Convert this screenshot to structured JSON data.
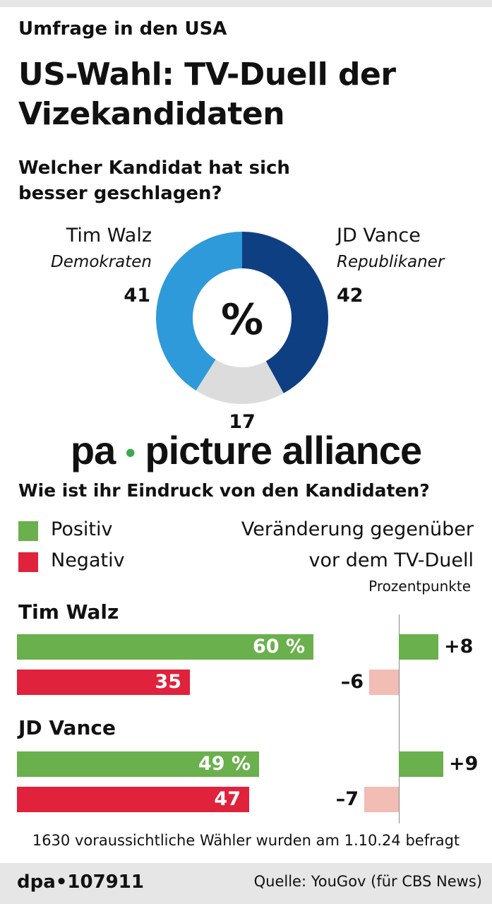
{
  "header": {
    "kicker": "Umfrage in den USA",
    "title_line1": "US-Wahl: TV-Duell der",
    "title_line2": "Vizekandidaten"
  },
  "question1": {
    "line1": "Welcher Kandidat hat sich",
    "line2": "besser geschlagen?"
  },
  "donut": {
    "center_label": "%",
    "walz": {
      "name": "Tim Walz",
      "party": "Demokraten",
      "value": "41"
    },
    "vance": {
      "name": "JD Vance",
      "party": "Republikaner",
      "value": "42"
    },
    "other": {
      "value": "17"
    }
  },
  "watermark": {
    "left": "pa",
    "dot": "•",
    "right": "picture alliance"
  },
  "question2": "Wie ist ihr Eindruck von den Kandidaten?",
  "legend": {
    "positive": "Positiv",
    "negative": "Negativ"
  },
  "change_title": {
    "line1": "Veränderung gegenüber",
    "line2": "vor dem TV-Duell",
    "unit": "Prozentpunkte"
  },
  "candidates": [
    {
      "name": "Tim Walz",
      "positive_label": "60 %",
      "negative_label": "35",
      "positive_change": "+8",
      "negative_change": "–6"
    },
    {
      "name": "JD Vance",
      "positive_label": "49 %",
      "negative_label": "47",
      "positive_change": "+9",
      "negative_change": "–7"
    }
  ],
  "note": "1630 voraussichtliche Wähler wurden am 1.10.24 befragt",
  "footer": {
    "id": "dpa•107911",
    "source": "Quelle: YouGov (für CBS News)"
  },
  "colors": {
    "democrat": "#2e9ad9",
    "republican": "#0f3f83",
    "other": "#dcdcdc",
    "positive": "#6ab04c",
    "negative": "#e0223c",
    "negative_change": "#f2bdb4"
  },
  "chart_data": [
    {
      "type": "pie",
      "categories": [
        "Tim Walz",
        "JD Vance",
        ""
      ],
      "values": [
        41,
        42,
        17
      ],
      "unit": "%"
    },
    {
      "type": "bar",
      "categories": [
        "Tim Walz",
        "JD Vance"
      ],
      "series": [
        {
          "name": "Positiv",
          "values": [
            60,
            49
          ]
        },
        {
          "name": "Negativ",
          "values": [
            35,
            47
          ]
        }
      ]
    },
    {
      "type": "bar",
      "categories": [
        "Tim Walz",
        "JD Vance"
      ],
      "title": "Veränderung gegenüber vor dem TV-Duell",
      "ylabel": "Prozentpunkte",
      "series": [
        {
          "name": "Positiv",
          "values": [
            8,
            9
          ]
        },
        {
          "name": "Negativ",
          "values": [
            -6,
            -7
          ]
        }
      ]
    }
  ]
}
